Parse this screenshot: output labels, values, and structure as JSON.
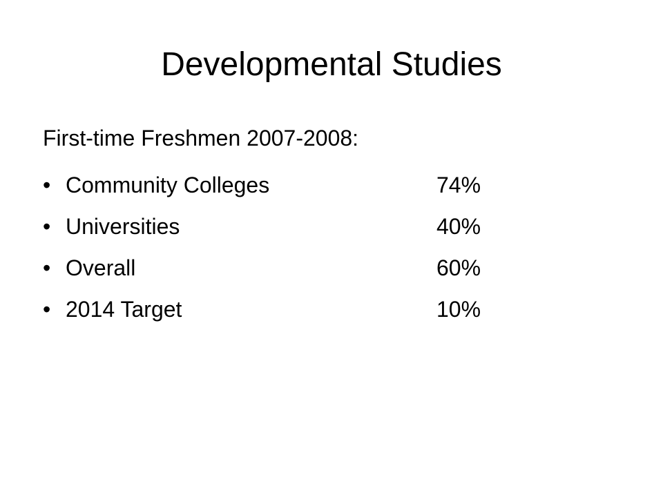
{
  "title": "Developmental Studies",
  "subtitle": "First-time Freshmen 2007-2008:",
  "items": [
    {
      "label": "Community Colleges",
      "value": "74%"
    },
    {
      "label": "Universities",
      "value": "40%"
    },
    {
      "label": "Overall",
      "value": "60%"
    },
    {
      "label": "2014 Target",
      "value": "10%"
    }
  ]
}
